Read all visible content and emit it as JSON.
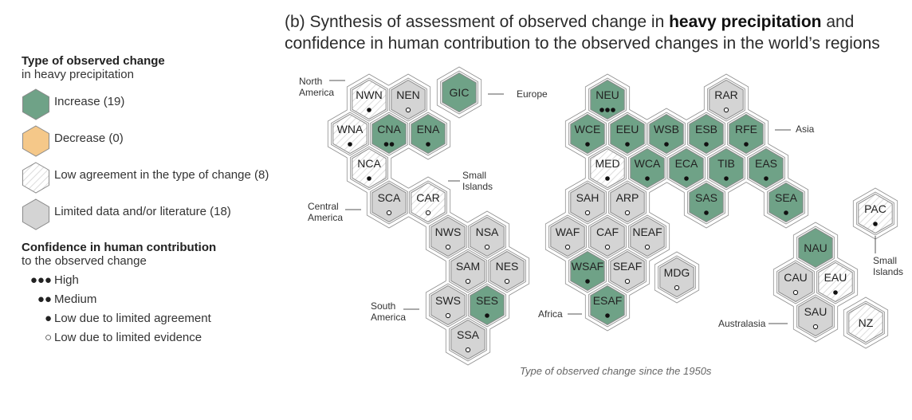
{
  "title": {
    "prefix": "(b) Synthesis of assessment of observed change in ",
    "bold": "heavy precipitation",
    "suffix": " and confidence in human contribution to the observed changes in the world’s regions"
  },
  "legend": {
    "type_heading": "Type of observed change",
    "type_sub": "in heavy precipitation",
    "types": [
      {
        "key": "inc",
        "label": "Increase (19)"
      },
      {
        "key": "dec",
        "label": "Decrease (0)"
      },
      {
        "key": "low",
        "label": "Low agreement in the type of change (8)"
      },
      {
        "key": "lim",
        "label": "Limited data and/or literature (18)"
      }
    ],
    "conf_heading": "Confidence in human contribution",
    "conf_sub": "to the observed change",
    "confidence": [
      {
        "dots": "●●●",
        "label": "High"
      },
      {
        "dots": "●●",
        "label": "Medium"
      },
      {
        "dots": "●",
        "label": "Low due to limited agreement"
      },
      {
        "dots": "○",
        "label": "Low due to limited evidence"
      }
    ]
  },
  "colors": {
    "inc": "#6fa287",
    "dec": "#f5c889",
    "low": "#ffffff",
    "lim": "#d4d4d4",
    "stroke": "#8a8a8a"
  },
  "caption": "Type of observed change since the 1950s",
  "continents": [
    {
      "lines": [
        "North",
        "America"
      ]
    },
    {
      "lines": [
        "Central",
        "America"
      ]
    },
    {
      "lines": [
        "Small",
        "Islands"
      ]
    },
    {
      "lines": [
        "South",
        "America"
      ]
    },
    {
      "lines": [
        "Europe"
      ]
    },
    {
      "lines": [
        "Asia"
      ]
    },
    {
      "lines": [
        "Africa"
      ]
    },
    {
      "lines": [
        "Australasia"
      ]
    },
    {
      "lines": [
        "Small",
        "Islands"
      ]
    }
  ],
  "regions": [
    {
      "code": "NWN",
      "type": "low",
      "conf": "low_agree"
    },
    {
      "code": "NEN",
      "type": "lim",
      "conf": "low_evid"
    },
    {
      "code": "GIC",
      "type": "inc",
      "conf": "none"
    },
    {
      "code": "WNA",
      "type": "low",
      "conf": "low_agree"
    },
    {
      "code": "CNA",
      "type": "inc",
      "conf": "medium"
    },
    {
      "code": "ENA",
      "type": "inc",
      "conf": "low_agree"
    },
    {
      "code": "NCA",
      "type": "low",
      "conf": "low_agree"
    },
    {
      "code": "SCA",
      "type": "lim",
      "conf": "low_evid"
    },
    {
      "code": "CAR",
      "type": "low",
      "conf": "low_evid"
    },
    {
      "code": "NWS",
      "type": "lim",
      "conf": "low_evid"
    },
    {
      "code": "NSA",
      "type": "lim",
      "conf": "low_evid"
    },
    {
      "code": "SAM",
      "type": "lim",
      "conf": "low_evid"
    },
    {
      "code": "NES",
      "type": "lim",
      "conf": "low_evid"
    },
    {
      "code": "SWS",
      "type": "lim",
      "conf": "low_evid"
    },
    {
      "code": "SES",
      "type": "inc",
      "conf": "low_agree"
    },
    {
      "code": "SSA",
      "type": "lim",
      "conf": "low_evid"
    },
    {
      "code": "NEU",
      "type": "inc",
      "conf": "high"
    },
    {
      "code": "RAR",
      "type": "lim",
      "conf": "low_evid"
    },
    {
      "code": "WCE",
      "type": "inc",
      "conf": "low_agree"
    },
    {
      "code": "EEU",
      "type": "inc",
      "conf": "low_agree"
    },
    {
      "code": "WSB",
      "type": "inc",
      "conf": "low_agree"
    },
    {
      "code": "ESB",
      "type": "inc",
      "conf": "low_agree"
    },
    {
      "code": "RFE",
      "type": "inc",
      "conf": "low_agree"
    },
    {
      "code": "MED",
      "type": "low",
      "conf": "low_agree"
    },
    {
      "code": "WCA",
      "type": "inc",
      "conf": "low_agree"
    },
    {
      "code": "ECA",
      "type": "inc",
      "conf": "low_agree"
    },
    {
      "code": "TIB",
      "type": "inc",
      "conf": "low_agree"
    },
    {
      "code": "EAS",
      "type": "inc",
      "conf": "low_agree"
    },
    {
      "code": "SAH",
      "type": "lim",
      "conf": "low_evid"
    },
    {
      "code": "ARP",
      "type": "lim",
      "conf": "low_evid"
    },
    {
      "code": "SAS",
      "type": "inc",
      "conf": "low_agree"
    },
    {
      "code": "SEA",
      "type": "inc",
      "conf": "low_agree"
    },
    {
      "code": "WAF",
      "type": "lim",
      "conf": "low_evid"
    },
    {
      "code": "CAF",
      "type": "lim",
      "conf": "low_evid"
    },
    {
      "code": "NEAF",
      "type": "lim",
      "conf": "low_evid"
    },
    {
      "code": "WSAF",
      "type": "inc",
      "conf": "low_agree"
    },
    {
      "code": "SEAF",
      "type": "lim",
      "conf": "low_evid"
    },
    {
      "code": "ESAF",
      "type": "inc",
      "conf": "low_agree"
    },
    {
      "code": "MDG",
      "type": "lim",
      "conf": "low_evid"
    },
    {
      "code": "PAC",
      "type": "low",
      "conf": "low_agree"
    },
    {
      "code": "NAU",
      "type": "inc",
      "conf": "none"
    },
    {
      "code": "CAU",
      "type": "lim",
      "conf": "low_evid"
    },
    {
      "code": "EAU",
      "type": "low",
      "conf": "low_agree"
    },
    {
      "code": "SAU",
      "type": "lim",
      "conf": "low_evid"
    },
    {
      "code": "NZ",
      "type": "low",
      "conf": "none"
    }
  ]
}
